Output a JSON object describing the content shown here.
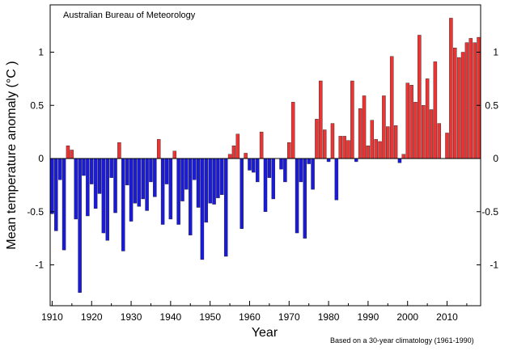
{
  "chart_data": {
    "type": "bar",
    "source": "Australian Bureau of Meteorology",
    "note": "Based on a 30-year climatology (1961-1990)",
    "xlabel": "Year",
    "ylabel": "Mean temperature anomaly (°C )",
    "xlim": [
      1909.5,
      2018.5
    ],
    "ylim": [
      -1.4,
      1.45
    ],
    "x_ticks": [
      1910,
      1920,
      1930,
      1940,
      1950,
      1960,
      1970,
      1980,
      1990,
      2000,
      2010
    ],
    "y_ticks": [
      -1,
      -0.5,
      0,
      0.5,
      1
    ],
    "y_tick_labels": [
      "-1",
      "-0.5",
      "0",
      "0.5",
      "1"
    ],
    "grid": false,
    "colors": {
      "positive": "#ee3333",
      "negative": "#1a1adc",
      "border": "#222222"
    },
    "years": [
      1910,
      1911,
      1912,
      1913,
      1914,
      1915,
      1916,
      1917,
      1918,
      1919,
      1920,
      1921,
      1922,
      1923,
      1924,
      1925,
      1926,
      1927,
      1928,
      1929,
      1930,
      1931,
      1932,
      1933,
      1934,
      1935,
      1936,
      1937,
      1938,
      1939,
      1940,
      1941,
      1942,
      1943,
      1944,
      1945,
      1946,
      1947,
      1948,
      1949,
      1950,
      1951,
      1952,
      1953,
      1954,
      1955,
      1956,
      1957,
      1958,
      1959,
      1960,
      1961,
      1962,
      1963,
      1964,
      1965,
      1966,
      1967,
      1968,
      1969,
      1970,
      1971,
      1972,
      1973,
      1974,
      1975,
      1976,
      1977,
      1978,
      1979,
      1980,
      1981,
      1982,
      1983,
      1984,
      1985,
      1986,
      1987,
      1988,
      1989,
      1990,
      1991,
      1992,
      1993,
      1994,
      1995,
      1996,
      1997,
      1998,
      1999,
      2000,
      2001,
      2002,
      2003,
      2004,
      2005,
      2006,
      2007,
      2008,
      2009,
      2010,
      2011,
      2012,
      2013,
      2014,
      2015,
      2016,
      2017,
      2018
    ],
    "values": [
      -0.52,
      -0.68,
      -0.2,
      -0.86,
      0.12,
      0.08,
      -0.57,
      -1.26,
      -0.16,
      -0.54,
      -0.24,
      -0.47,
      -0.33,
      -0.7,
      -0.77,
      -0.18,
      -0.51,
      0.15,
      -0.87,
      -0.25,
      -0.59,
      -0.42,
      -0.45,
      -0.38,
      -0.49,
      -0.22,
      -0.36,
      0.18,
      -0.62,
      -0.24,
      -0.57,
      0.07,
      -0.62,
      -0.4,
      -0.29,
      -0.72,
      -0.2,
      -0.46,
      -0.95,
      -0.6,
      -0.42,
      -0.43,
      -0.37,
      -0.34,
      -0.92,
      0.04,
      0.12,
      0.23,
      -0.66,
      0.05,
      -0.11,
      -0.13,
      -0.22,
      0.25,
      -0.5,
      -0.18,
      -0.38,
      0.0,
      -0.1,
      -0.22,
      0.15,
      0.53,
      -0.7,
      -0.22,
      -0.75,
      -0.05,
      -0.29,
      0.37,
      0.73,
      0.27,
      -0.03,
      0.33,
      -0.39,
      0.21,
      0.21,
      0.17,
      0.73,
      -0.03,
      0.47,
      0.59,
      0.12,
      0.36,
      0.18,
      0.16,
      0.59,
      0.3,
      0.96,
      0.31,
      -0.04,
      0.04,
      0.71,
      0.69,
      0.53,
      1.16,
      0.5,
      0.75,
      0.46,
      0.91,
      0.33,
      0.0,
      0.24,
      1.32,
      1.04,
      0.95,
      1.0,
      1.09,
      1.13,
      1.09,
      1.14
    ]
  }
}
